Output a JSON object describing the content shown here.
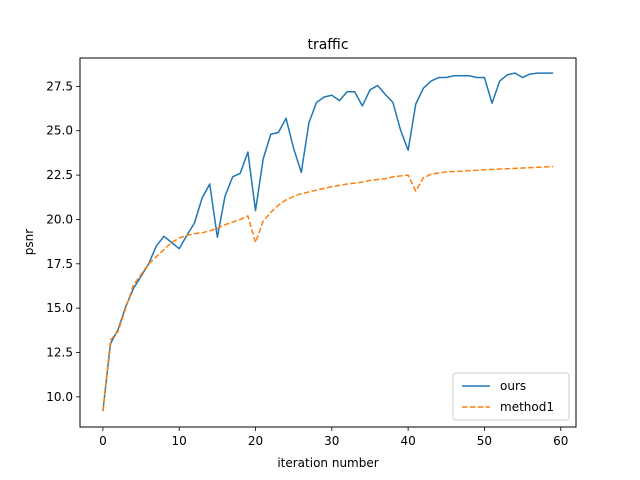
{
  "chart_data": {
    "type": "line",
    "title": "traffic",
    "xlabel": "iteration number",
    "ylabel": "psnr",
    "xlim": [
      -3,
      62
    ],
    "ylim": [
      8.3,
      29.1
    ],
    "xticks": [
      0,
      10,
      20,
      30,
      40,
      50,
      60
    ],
    "yticks": [
      10.0,
      12.5,
      15.0,
      17.5,
      20.0,
      22.5,
      25.0,
      27.5
    ],
    "grid": false,
    "legend_position": "lower-right",
    "x": [
      0,
      1,
      2,
      3,
      4,
      5,
      6,
      7,
      8,
      9,
      10,
      11,
      12,
      13,
      14,
      15,
      16,
      17,
      18,
      19,
      20,
      21,
      22,
      23,
      24,
      25,
      26,
      27,
      28,
      29,
      30,
      31,
      32,
      33,
      34,
      35,
      36,
      37,
      38,
      39,
      40,
      41,
      42,
      43,
      44,
      45,
      46,
      47,
      48,
      49,
      50,
      51,
      52,
      53,
      54,
      55,
      56,
      57,
      58,
      59
    ],
    "series": [
      {
        "name": "ours",
        "color": "#1f77b4",
        "style": "solid",
        "values": [
          9.2,
          13.0,
          13.8,
          15.1,
          16.1,
          16.8,
          17.5,
          18.5,
          19.05,
          18.7,
          18.35,
          19.1,
          19.8,
          21.2,
          22.0,
          19.0,
          21.3,
          22.4,
          22.6,
          23.8,
          20.5,
          23.4,
          24.8,
          24.9,
          25.7,
          24.0,
          22.65,
          25.45,
          26.6,
          26.9,
          27.0,
          26.7,
          27.2,
          27.2,
          26.4,
          27.3,
          27.55,
          27.05,
          26.6,
          25.05,
          23.9,
          26.5,
          27.4,
          27.8,
          28.0,
          28.0,
          28.1,
          28.1,
          28.1,
          28.0,
          28.0,
          26.55,
          27.8,
          28.15,
          28.25,
          28.0,
          28.2,
          28.25,
          28.25,
          28.25
        ]
      },
      {
        "name": "method1",
        "color": "#ff7f0e",
        "style": "dashed",
        "values": [
          9.2,
          13.2,
          13.7,
          15.0,
          16.3,
          16.9,
          17.5,
          17.9,
          18.3,
          18.7,
          18.95,
          19.1,
          19.2,
          19.25,
          19.35,
          19.5,
          19.7,
          19.85,
          20.0,
          20.2,
          18.7,
          19.9,
          20.4,
          20.8,
          21.1,
          21.3,
          21.45,
          21.55,
          21.65,
          21.75,
          21.85,
          21.92,
          22.0,
          22.05,
          22.1,
          22.2,
          22.25,
          22.3,
          22.4,
          22.45,
          22.5,
          21.6,
          22.35,
          22.55,
          22.62,
          22.68,
          22.7,
          22.72,
          22.75,
          22.77,
          22.8,
          22.82,
          22.84,
          22.86,
          22.88,
          22.9,
          22.92,
          22.94,
          22.96,
          22.98
        ]
      }
    ]
  }
}
